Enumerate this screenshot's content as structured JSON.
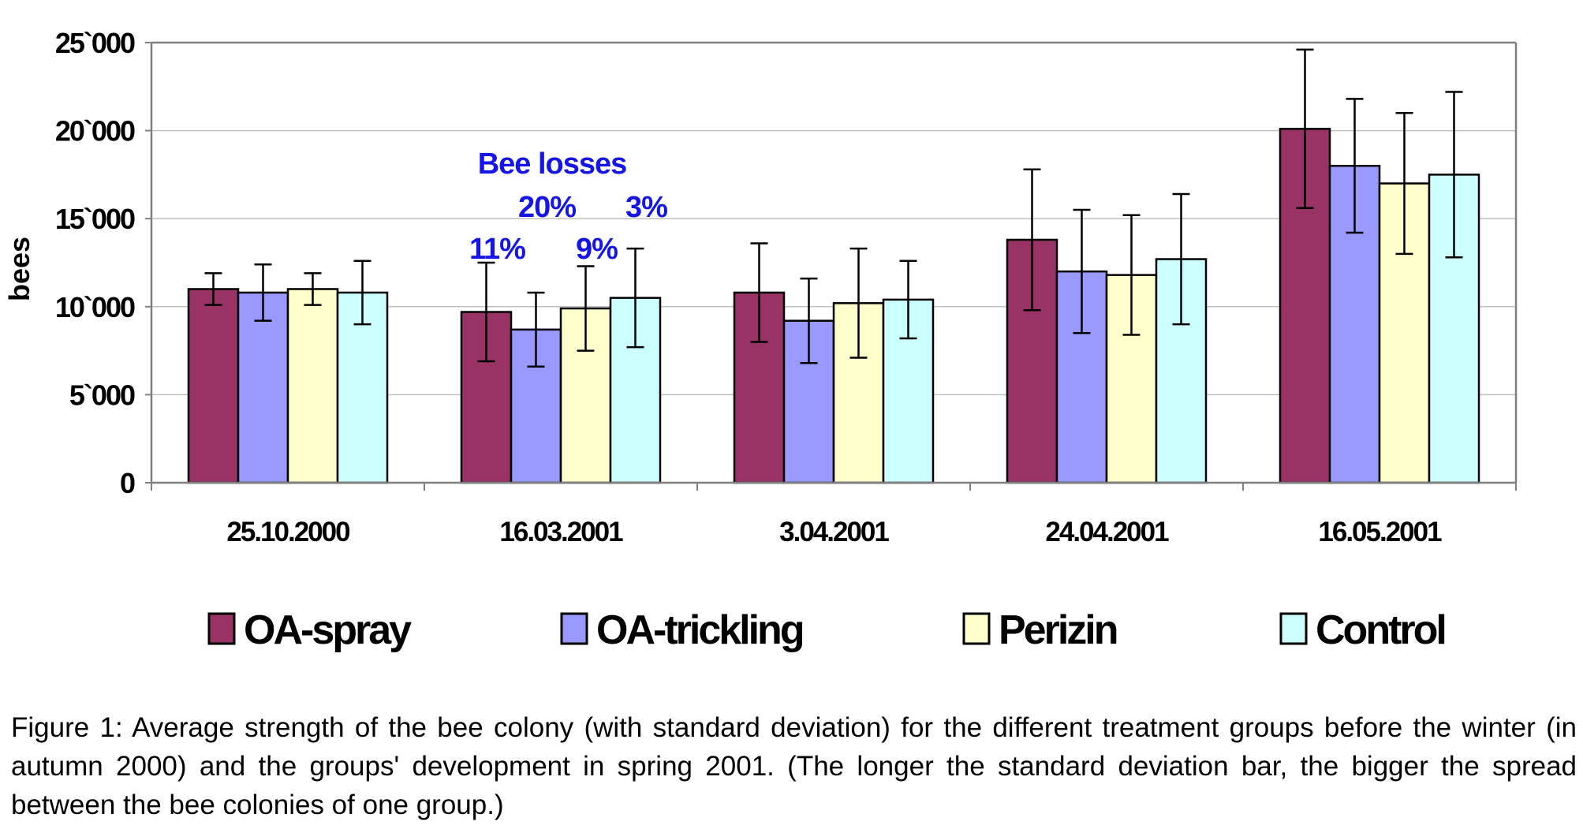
{
  "chart_data": {
    "type": "bar",
    "ylabel": "bees",
    "ylim": [
      0,
      25000
    ],
    "y_ticks": [
      0,
      5000,
      10000,
      15000,
      20000,
      25000
    ],
    "y_tick_labels": [
      "0",
      "5`000",
      "10`000",
      "15`000",
      "20`000",
      "25`000"
    ],
    "grid": true,
    "legend_position": "bottom",
    "categories": [
      "25.10.2000",
      "16.03.2001",
      "3.04.2001",
      "24.04.2001",
      "16.05.2001"
    ],
    "series": [
      {
        "name": "OA-spray",
        "color": "#993366",
        "values": [
          11000,
          9700,
          10800,
          13800,
          20100
        ],
        "sd": [
          900,
          2800,
          2800,
          4000,
          4500
        ]
      },
      {
        "name": "OA-trickling",
        "color": "#9999ff",
        "values": [
          10800,
          8700,
          9200,
          12000,
          18000
        ],
        "sd": [
          1600,
          2100,
          2400,
          3500,
          3800
        ]
      },
      {
        "name": "Perizin",
        "color": "#ffffcc",
        "values": [
          11000,
          9900,
          10200,
          11800,
          17000
        ],
        "sd": [
          900,
          2400,
          3100,
          3400,
          4000
        ]
      },
      {
        "name": "Control",
        "color": "#ccffff",
        "values": [
          10800,
          10500,
          10400,
          12700,
          17500
        ],
        "sd": [
          1800,
          2800,
          2200,
          3700,
          4700
        ]
      }
    ],
    "annotations": {
      "title": "Bee losses",
      "category": "16.03.2001",
      "labels": [
        "11%",
        "20%",
        "9%",
        "3%"
      ]
    }
  },
  "caption": "Figure 1: Average strength of the bee colony (with standard deviation) for the different treatment groups before the winter (in autumn 2000) and the groups' development in spring 2001. (The longer the standard deviation bar, the bigger the spread between the bee colonies of one group.)"
}
